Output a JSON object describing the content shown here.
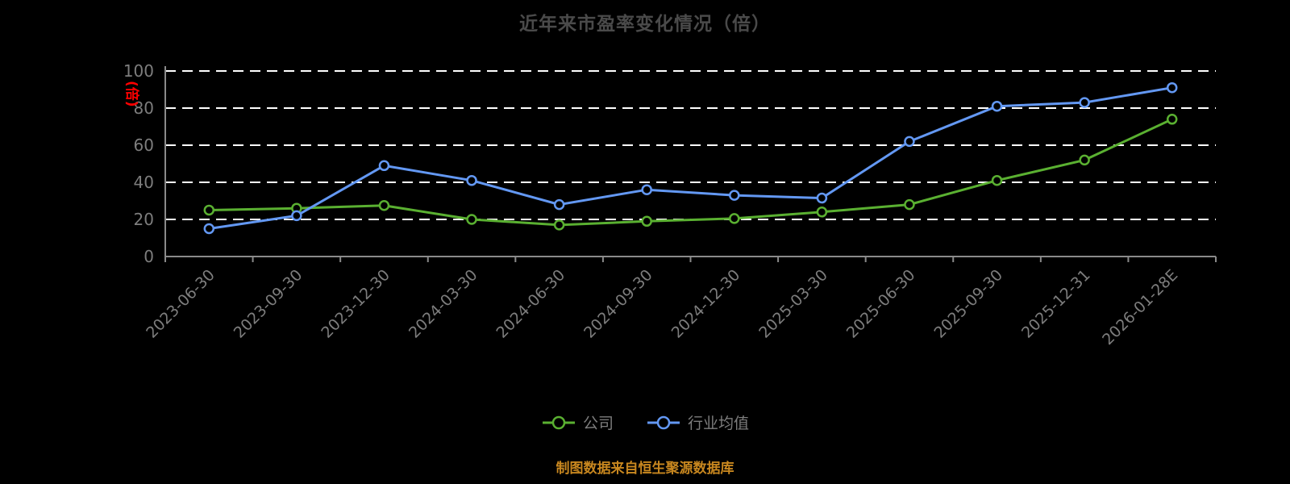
{
  "title": "近年来市盈率变化情况（倍）",
  "y_axis_unit": "(倍)",
  "legend": {
    "series1": "公司",
    "series2": "行业均值"
  },
  "source_note": "制图数据来自恒生聚源数据库",
  "colors": {
    "background": "#000000",
    "title": "#4a4a4a",
    "grid": "#ffffff",
    "axis": "#8a8a8a",
    "tick_label": "#7d7d7d",
    "unit_label": "#ff0000",
    "source": "#c8871f",
    "company": "#5ab031",
    "industry": "#6398f3"
  },
  "chart_data": {
    "type": "line",
    "title": "近年来市盈率变化情况（倍）",
    "ylabel": "(倍)",
    "xlabel": "",
    "ylim": [
      0,
      100
    ],
    "yticks": [
      0,
      20,
      40,
      60,
      80,
      100
    ],
    "grid": "horizontal dashed white",
    "legend_position": "bottom",
    "categories": [
      "2023-06-30",
      "2023-09-30",
      "2023-12-30",
      "2024-03-30",
      "2024-06-30",
      "2024-09-30",
      "2024-12-30",
      "2025-03-30",
      "2025-06-30",
      "2025-09-30",
      "2025-12-31",
      "2026-01-28E"
    ],
    "series": [
      {
        "name": "公司",
        "color": "#5ab031",
        "values": [
          25,
          26,
          27.5,
          20,
          17,
          19,
          20.5,
          24,
          28,
          41,
          52,
          74
        ]
      },
      {
        "name": "行业均值",
        "color": "#6398f3",
        "values": [
          15,
          22,
          49,
          41,
          28,
          36,
          33,
          31.5,
          62,
          81,
          83,
          91
        ]
      }
    ]
  }
}
